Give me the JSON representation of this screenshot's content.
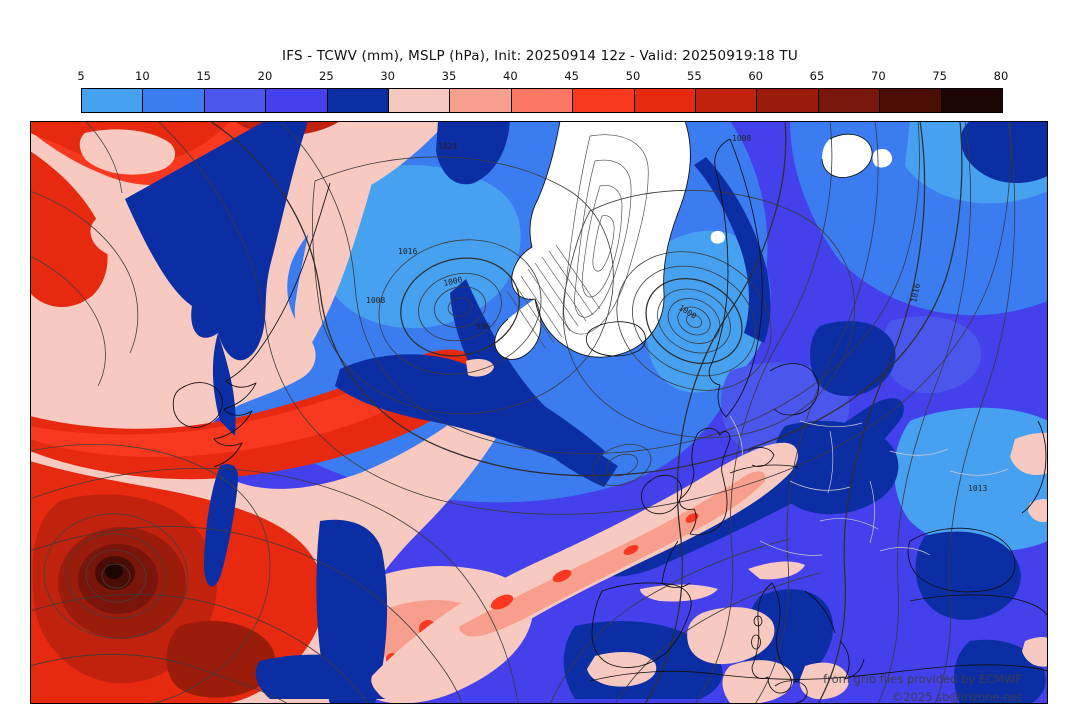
{
  "title": "IFS - TCWV (mm), MSLP (hPa), Init: 20250914 12z - Valid: 20250919:18 TU",
  "colorbar": {
    "unit": "mm",
    "ticks": [
      "5",
      "10",
      "15",
      "20",
      "25",
      "30",
      "35",
      "40",
      "45",
      "50",
      "55",
      "60",
      "65",
      "70",
      "75",
      "80"
    ],
    "segments": [
      {
        "range": "5-10",
        "color": "#47a1f1"
      },
      {
        "range": "10-15",
        "color": "#3c7cf1"
      },
      {
        "range": "15-20",
        "color": "#4b57ec"
      },
      {
        "range": "20-25",
        "color": "#4340ec"
      },
      {
        "range": "25-30",
        "color": "#0c2ea4"
      },
      {
        "range": "30-35",
        "color": "#f8c9c1"
      },
      {
        "range": "35-40",
        "color": "#f89e8d"
      },
      {
        "range": "40-45",
        "color": "#fa7861"
      },
      {
        "range": "45-50",
        "color": "#f93820"
      },
      {
        "range": "50-55",
        "color": "#e6290f"
      },
      {
        "range": "55-60",
        "color": "#c0220e"
      },
      {
        "range": "60-65",
        "color": "#9c1c0b"
      },
      {
        "range": "65-70",
        "color": "#7a150b"
      },
      {
        "range": "70-75",
        "color": "#4a0d05"
      },
      {
        "range": "75-80",
        "color": "#1c0503"
      }
    ]
  },
  "map": {
    "pressure_labels": [
      {
        "text": "1024"
      },
      {
        "text": "1016"
      },
      {
        "text": "1008"
      },
      {
        "text": "1000"
      },
      {
        "text": "996"
      },
      {
        "text": "1000"
      },
      {
        "text": "1008"
      },
      {
        "text": "1016"
      },
      {
        "text": "1013"
      }
    ],
    "watermark": {
      "line1": "from grib files provided by ECMWF",
      "line2": "©2025 sb@irizone.net"
    }
  }
}
